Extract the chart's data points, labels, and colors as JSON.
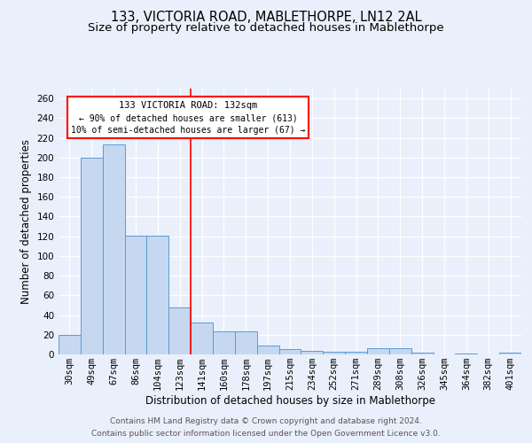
{
  "title": "133, VICTORIA ROAD, MABLETHORPE, LN12 2AL",
  "subtitle": "Size of property relative to detached houses in Mablethorpe",
  "xlabel": "Distribution of detached houses by size in Mablethorpe",
  "ylabel": "Number of detached properties",
  "categories": [
    "30sqm",
    "49sqm",
    "67sqm",
    "86sqm",
    "104sqm",
    "123sqm",
    "141sqm",
    "160sqm",
    "178sqm",
    "197sqm",
    "215sqm",
    "234sqm",
    "252sqm",
    "271sqm",
    "289sqm",
    "308sqm",
    "326sqm",
    "345sqm",
    "364sqm",
    "382sqm",
    "401sqm"
  ],
  "values": [
    20,
    200,
    213,
    121,
    121,
    48,
    32,
    23,
    23,
    9,
    5,
    4,
    3,
    3,
    6,
    6,
    2,
    0,
    1,
    0,
    2
  ],
  "bar_color": "#c5d8f0",
  "bar_edge_color": "#5b9bd5",
  "red_line_index": 5,
  "annotation_text_line1": "133 VICTORIA ROAD: 132sqm",
  "annotation_text_line2": "← 90% of detached houses are smaller (613)",
  "annotation_text_line3": "10% of semi-detached houses are larger (67) →",
  "ylim": [
    0,
    270
  ],
  "yticks": [
    0,
    20,
    40,
    60,
    80,
    100,
    120,
    140,
    160,
    180,
    200,
    220,
    240,
    260
  ],
  "footer_line1": "Contains HM Land Registry data © Crown copyright and database right 2024.",
  "footer_line2": "Contains public sector information licensed under the Open Government Licence v3.0.",
  "bg_color": "#eaf0fb",
  "plot_bg_color": "#eaf0fb",
  "grid_color": "#d0daf0",
  "title_fontsize": 10.5,
  "subtitle_fontsize": 9.5,
  "label_fontsize": 8.5,
  "tick_fontsize": 7.5,
  "footer_fontsize": 6.5
}
